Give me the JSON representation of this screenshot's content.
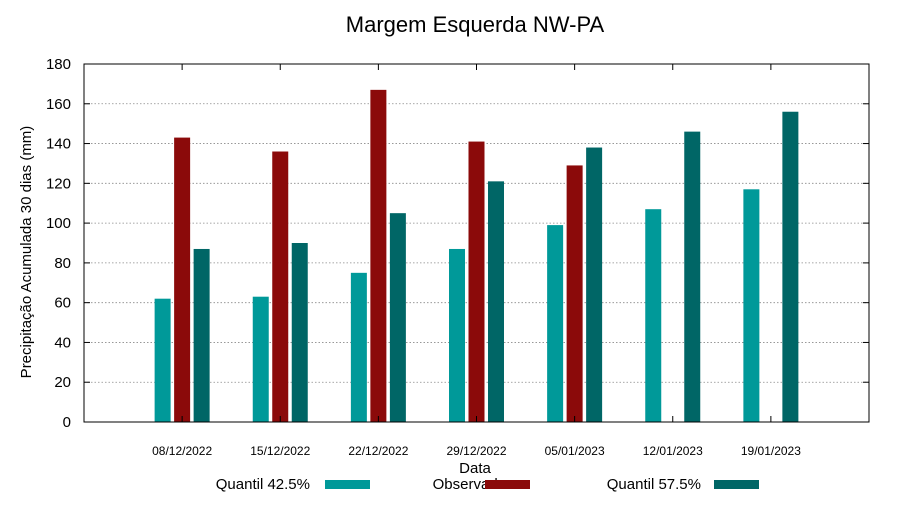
{
  "chart_data": {
    "type": "bar",
    "title": "Margem Esquerda NW-PA",
    "xlabel": "Data",
    "ylabel": "Precipitação Acumulada 30 dias (mm)",
    "ylim": [
      0,
      180
    ],
    "yticks": [
      0,
      20,
      40,
      60,
      80,
      100,
      120,
      140,
      160,
      180
    ],
    "grid": true,
    "legend_position": "bottom",
    "categories": [
      "08/12/2022",
      "15/12/2022",
      "22/12/2022",
      "29/12/2022",
      "05/01/2023",
      "12/01/2023",
      "19/01/2023"
    ],
    "series": [
      {
        "name": "Quantil 42.5%",
        "color": "#009999",
        "values": [
          62,
          63,
          75,
          87,
          99,
          107,
          117
        ]
      },
      {
        "name": "Observado",
        "color": "#8b0a0a",
        "values": [
          143,
          136,
          167,
          141,
          129,
          null,
          null
        ]
      },
      {
        "name": "Quantil 57.5%",
        "color": "#006666",
        "values": [
          87,
          90,
          105,
          121,
          138,
          146,
          156
        ]
      }
    ]
  }
}
